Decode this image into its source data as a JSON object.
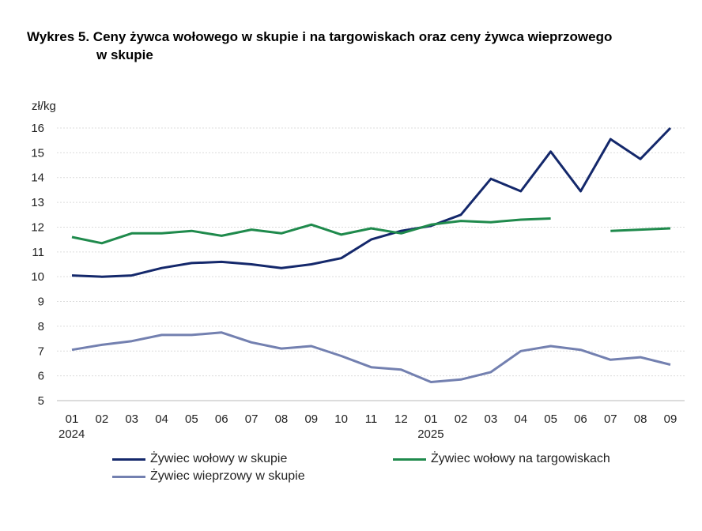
{
  "title_line1": "Wykres 5. Ceny żywca wołowego w skupie i na targowiskach oraz ceny żywca wieprzowego",
  "title_line2": "w skupie",
  "chart_data": {
    "type": "line",
    "ylabel": "zł/kg",
    "ylim": [
      5,
      16
    ],
    "yticks": [
      5,
      6,
      7,
      8,
      9,
      10,
      11,
      12,
      13,
      14,
      15,
      16
    ],
    "grid": true,
    "legend_placement": "bottom",
    "categories": [
      "01",
      "02",
      "03",
      "04",
      "05",
      "06",
      "07",
      "08",
      "09",
      "10",
      "11",
      "12",
      "01",
      "02",
      "03",
      "04",
      "05",
      "06",
      "07",
      "08",
      "09"
    ],
    "year_labels": [
      {
        "index": 0,
        "label": "2024"
      },
      {
        "index": 12,
        "label": "2025"
      }
    ],
    "series": [
      {
        "name": "Żywiec wołowy w skupie",
        "color": "#14286b",
        "values": [
          10.05,
          10.0,
          10.05,
          10.35,
          10.55,
          10.6,
          10.5,
          10.35,
          10.5,
          10.75,
          11.5,
          11.85,
          12.05,
          12.5,
          13.95,
          13.45,
          15.05,
          13.45,
          15.55,
          14.75,
          16.0
        ]
      },
      {
        "name": "Żywiec wołowy na targowiskach",
        "color": "#1f8a4c",
        "values": [
          11.6,
          11.35,
          11.75,
          11.75,
          11.85,
          11.65,
          11.9,
          11.75,
          12.1,
          11.7,
          11.95,
          11.75,
          12.1,
          12.25,
          12.2,
          12.3,
          12.35,
          null,
          11.85,
          11.9,
          11.95
        ]
      },
      {
        "name": "Żywiec wieprzowy w skupie",
        "color": "#7380b0",
        "values": [
          7.05,
          7.25,
          7.4,
          7.65,
          7.65,
          7.75,
          7.35,
          7.1,
          7.2,
          6.8,
          6.35,
          6.25,
          5.75,
          5.85,
          6.15,
          7.0,
          7.2,
          7.05,
          6.65,
          6.75,
          6.45
        ]
      }
    ]
  }
}
